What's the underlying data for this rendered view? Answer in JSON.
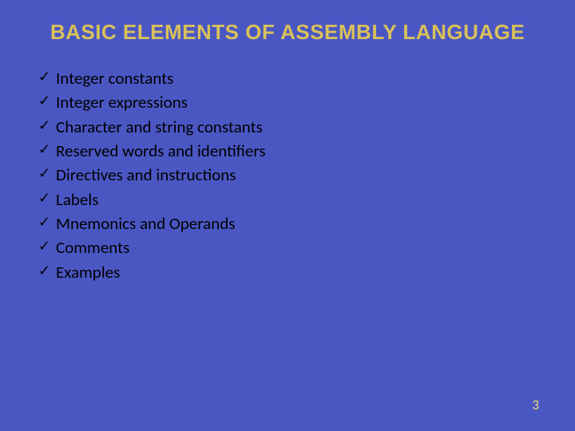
{
  "slide": {
    "background_color": "#4a57c3",
    "title": {
      "text": "BASIC ELEMENTS OF ASSEMBLY LANGUAGE",
      "color": "#d9c15a",
      "fontsize": 26
    },
    "bullets": {
      "checkmark_glyph": "✓",
      "checkmark_color": "#000000",
      "text_color": "#000000",
      "fontsize": 21,
      "line_height": 1.35,
      "items": [
        "Integer constants",
        "Integer expressions",
        "Character and string constants",
        "Reserved words and identifiers",
        "Directives and instructions",
        "Labels",
        "Mnemonics and Operands",
        "Comments",
        "Examples"
      ]
    },
    "page_number": {
      "value": "3",
      "color": "#e8d77a",
      "fontsize": 17
    }
  }
}
